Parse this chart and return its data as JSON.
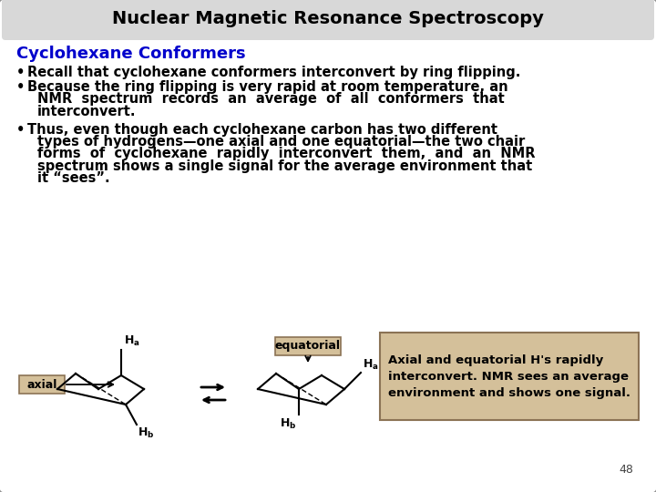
{
  "title": "Nuclear Magnetic Resonance Spectroscopy",
  "subtitle": "Cyclohexane Conformers",
  "subtitle_color": "#0000CC",
  "title_color": "#000000",
  "background_color": "#FFFFFF",
  "border_color": "#909090",
  "title_bg_color": "#D8D8D8",
  "bullet1": "Recall that cyclohexane conformers interconvert by ring flipping.",
  "bullet2_line1": "Because the ring flipping is very rapid at room temperature, an",
  "bullet2_line2": "NMR  spectrum  records  an  average  of  all  conformers  that",
  "bullet2_line3": "interconvert.",
  "bullet3_line1": "Thus, even though each cyclohexane carbon has two different",
  "bullet3_line2": "types of hydrogens—one axial and one equatorial—the two chair",
  "bullet3_line3": "forms  of  cyclohexane  rapidly  interconvert  them,  and  an  NMR",
  "bullet3_line4": "spectrum shows a single signal for the average environment that",
  "bullet3_line5": "it “sees”.",
  "box_bg_color": "#D4C09A",
  "box_border_color": "#8B7355",
  "annotation_line1": "Axial and equatorial H's rapidly",
  "annotation_line2": "interconvert. NMR sees an average",
  "annotation_line3": "environment and shows one signal.",
  "page_number": "48",
  "body_font_size": 10.5,
  "title_font_size": 14,
  "subtitle_font_size": 13
}
